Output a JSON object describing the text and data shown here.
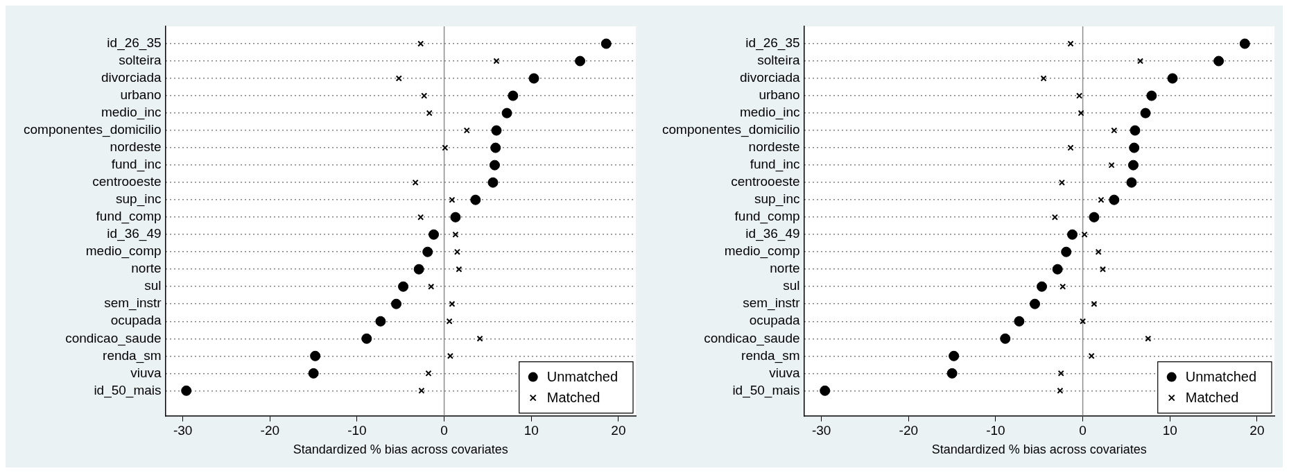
{
  "chart_data": [
    {
      "type": "scatter",
      "orientation": "horizontal",
      "xlabel": "Standardized % bias across covariates",
      "categories": [
        "id_26_35",
        "solteira",
        "divorciada",
        "urbano",
        "medio_inc",
        "componentes_domicilio",
        "nordeste",
        "fund_inc",
        "centrooeste",
        "sup_inc",
        "fund_comp",
        "id_36_49",
        "medio_comp",
        "norte",
        "sul",
        "sem_instr",
        "ocupada",
        "condicao_saude",
        "renda_sm",
        "viuva",
        "id_50_mais"
      ],
      "xlim": [
        -32,
        22
      ],
      "xticks": [
        -30,
        -20,
        -10,
        0,
        10,
        20
      ],
      "grid": "y",
      "legend": "bottom right",
      "ref_lines": [
        {
          "axis": "x",
          "value": 0,
          "color": "#8c8c8c"
        }
      ],
      "series": [
        {
          "name": "Unmatched",
          "color": "#000000",
          "marker": "circle",
          "values": [
            18.6,
            15.6,
            10.3,
            7.9,
            7.2,
            6.0,
            5.9,
            5.8,
            5.6,
            3.6,
            1.3,
            -1.2,
            -1.9,
            -2.9,
            -4.7,
            -5.5,
            -7.3,
            -8.9,
            -14.8,
            -15.0,
            -29.6
          ]
        },
        {
          "name": "Matched",
          "color": "#000000",
          "marker": "cross",
          "values": [
            -2.7,
            6.0,
            -5.2,
            -2.3,
            -1.7,
            2.6,
            0.1,
            null,
            -3.3,
            0.9,
            -2.7,
            1.3,
            1.5,
            1.7,
            -1.5,
            0.9,
            0.6,
            4.1,
            0.7,
            -1.8,
            -2.6
          ]
        }
      ]
    },
    {
      "type": "scatter",
      "orientation": "horizontal",
      "xlabel": "Standardized % bias across covariates",
      "categories": [
        "id_26_35",
        "solteira",
        "divorciada",
        "urbano",
        "medio_inc",
        "componentes_domicilio",
        "nordeste",
        "fund_inc",
        "centrooeste",
        "sup_inc",
        "fund_comp",
        "id_36_49",
        "medio_comp",
        "norte",
        "sul",
        "sem_instr",
        "ocupada",
        "condicao_saude",
        "renda_sm",
        "viuva",
        "id_50_mais"
      ],
      "xlim": [
        -32,
        22
      ],
      "xticks": [
        -30,
        -20,
        -10,
        0,
        10,
        20
      ],
      "grid": "y",
      "legend": "bottom right",
      "ref_lines": [
        {
          "axis": "x",
          "value": 0,
          "color": "#8c8c8c"
        }
      ],
      "series": [
        {
          "name": "Unmatched",
          "color": "#000000",
          "marker": "circle",
          "values": [
            18.6,
            15.6,
            10.3,
            7.9,
            7.2,
            6.0,
            5.9,
            5.8,
            5.6,
            3.6,
            1.3,
            -1.2,
            -1.9,
            -2.9,
            -4.7,
            -5.5,
            -7.3,
            -8.9,
            -14.8,
            -15.0,
            -29.6
          ]
        },
        {
          "name": "Matched",
          "color": "#000000",
          "marker": "cross",
          "values": [
            -1.4,
            6.6,
            -4.5,
            -0.4,
            -0.2,
            3.6,
            -1.4,
            3.3,
            -2.4,
            2.1,
            -3.2,
            0.2,
            1.8,
            2.3,
            -2.3,
            1.3,
            0.0,
            7.5,
            1.0,
            -2.5,
            -2.6
          ]
        }
      ]
    }
  ]
}
